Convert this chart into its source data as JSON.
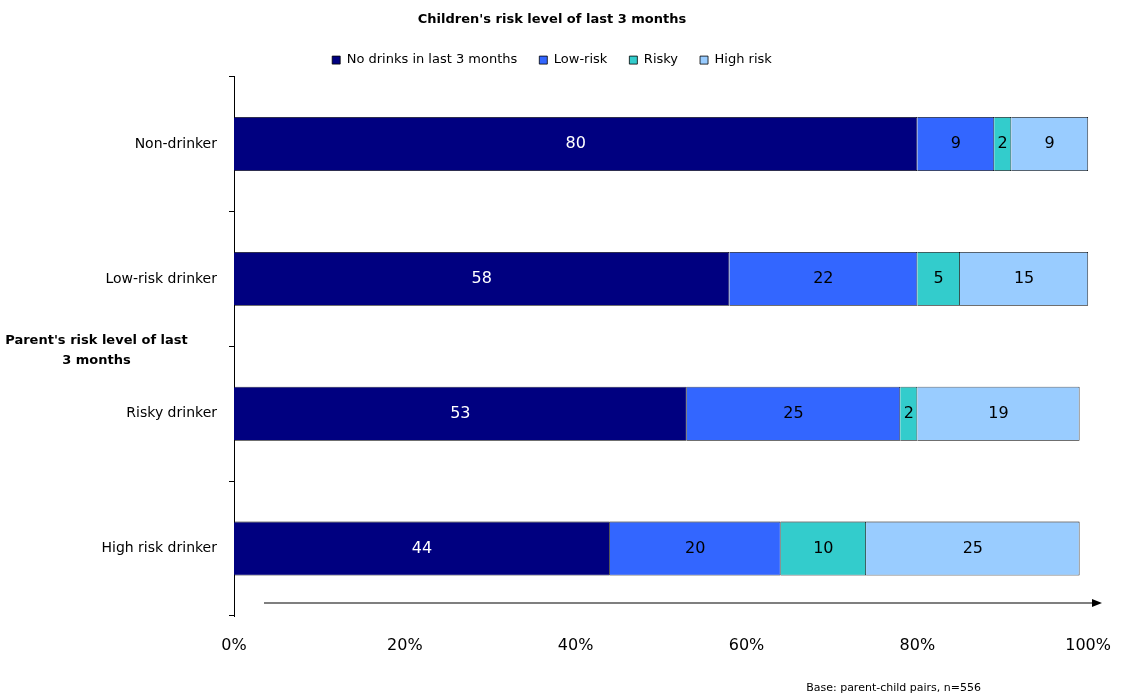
{
  "chart_data": {
    "type": "bar",
    "orientation": "horizontal",
    "stacked": true,
    "title": "Children's risk level of last 3 months",
    "ylabel": "Parent's risk level of last 3 months",
    "categories": [
      "Non-drinker",
      "Low-risk drinker",
      "Risky drinker",
      "High risk drinker"
    ],
    "series": [
      {
        "name": "No drinks in last 3 months",
        "color": "#000080",
        "values": [
          80,
          58,
          53,
          44
        ]
      },
      {
        "name": "Low-risk",
        "color": "#3366ff",
        "values": [
          9,
          22,
          25,
          20
        ]
      },
      {
        "name": "Risky",
        "color": "#33cccc",
        "values": [
          2,
          5,
          2,
          10
        ]
      },
      {
        "name": "High risk",
        "color": "#99ccff",
        "values": [
          9,
          15,
          19,
          25
        ]
      }
    ],
    "xlim": [
      0,
      100
    ],
    "xticks": [
      {
        "value": 0,
        "label": "0%"
      },
      {
        "value": 20,
        "label": "20%"
      },
      {
        "value": 40,
        "label": "40%"
      },
      {
        "value": 60,
        "label": "60%"
      },
      {
        "value": 80,
        "label": "80%"
      },
      {
        "value": 100,
        "label": "100%"
      }
    ],
    "data_labels": true,
    "legend": "top",
    "grid": false,
    "annotations": [
      "Base: parent-child pairs, n=556"
    ]
  }
}
